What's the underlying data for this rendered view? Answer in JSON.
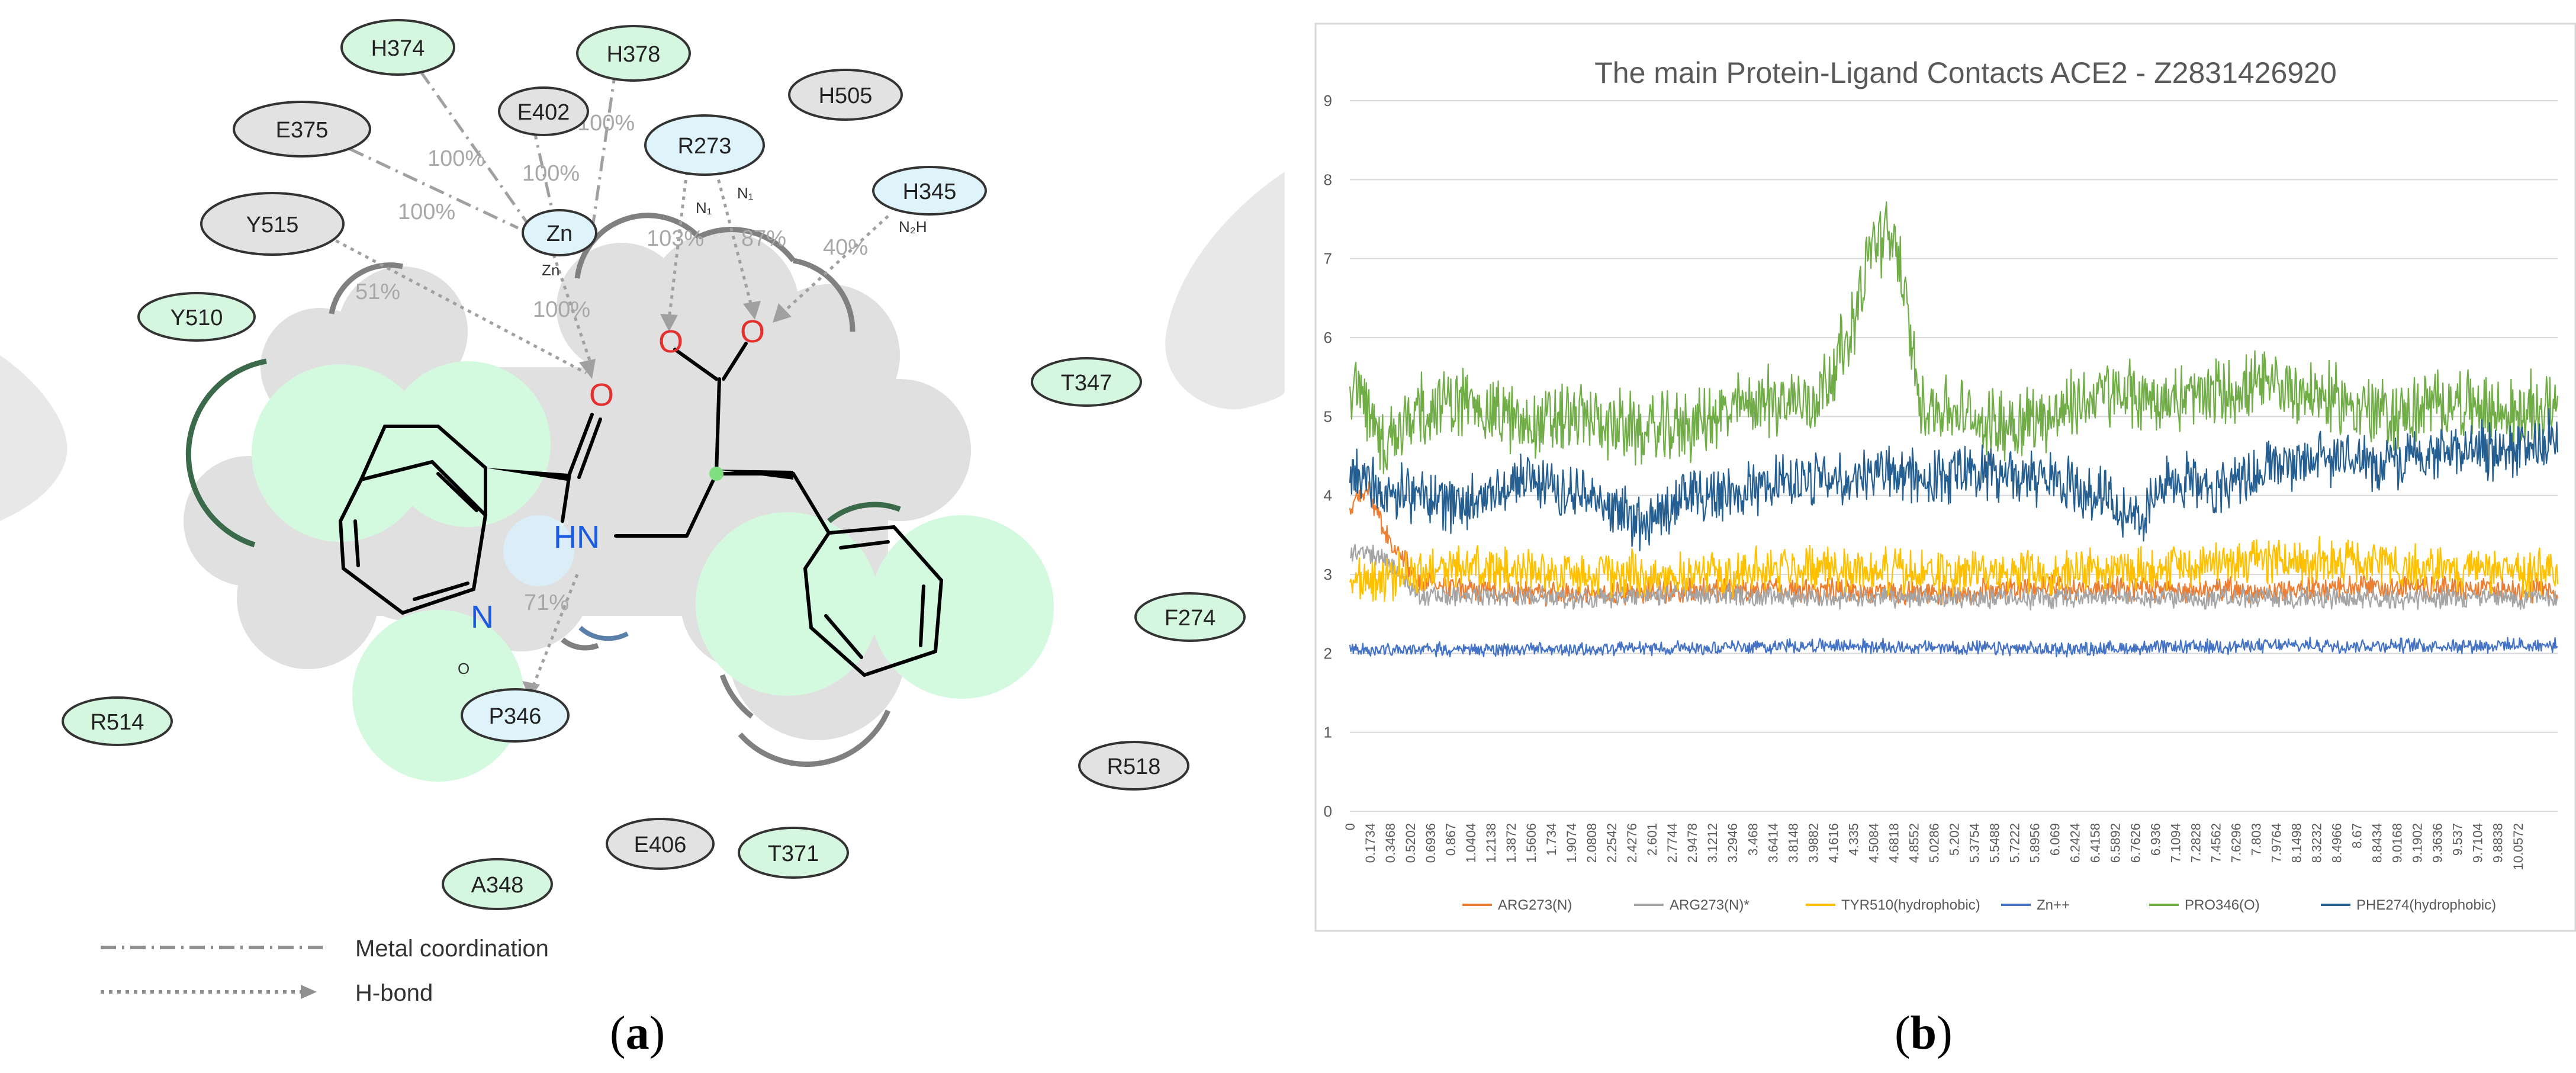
{
  "panel_labels": {
    "a": "a",
    "b": "b"
  },
  "interaction_diagram": {
    "residues": [
      {
        "name": "H374",
        "color": "#d5f7e0"
      },
      {
        "name": "H378",
        "color": "#d5f7e0"
      },
      {
        "name": "E402",
        "color": "#e2e2e2"
      },
      {
        "name": "E375",
        "color": "#e2e2e2"
      },
      {
        "name": "H505",
        "color": "#e2e2e2"
      },
      {
        "name": "R273",
        "color": "#dff3fb"
      },
      {
        "name": "H345",
        "color": "#dff3fb"
      },
      {
        "name": "Y515",
        "color": "#e2e2e2"
      },
      {
        "name": "Zn",
        "color": "#dff3fb"
      },
      {
        "name": "Y510",
        "color": "#d5f7e0"
      },
      {
        "name": "T347",
        "color": "#d5f7e0"
      },
      {
        "name": "F274",
        "color": "#d5f7e0"
      },
      {
        "name": "R514",
        "color": "#d5f7e0"
      },
      {
        "name": "P346",
        "color": "#dff3fb"
      },
      {
        "name": "R518",
        "color": "#e2e2e2"
      },
      {
        "name": "E406",
        "color": "#e2e2e2"
      },
      {
        "name": "T371",
        "color": "#d5f7e0"
      },
      {
        "name": "A348",
        "color": "#d5f7e0"
      }
    ],
    "percent_labels": [
      "100%",
      "100%",
      "100%",
      "100%",
      "100%",
      "51%",
      "103%",
      "87%",
      "40%",
      "71%"
    ],
    "atom_labels": {
      "o1": "O",
      "o2": "O",
      "o3": "O",
      "hn": "HN",
      "n": "N",
      "zn_small": "Zn",
      "n1": "N₁",
      "n2": "N₁",
      "nh": "N₂H",
      "p_o": "O"
    },
    "legend": [
      {
        "label": "Metal coordination",
        "style": "dash-dot"
      },
      {
        "label": "H-bond",
        "style": "dotted-arrow"
      }
    ]
  },
  "chart_data": {
    "type": "line",
    "title": "The main Protein-Ligand Contacts ACE2 - Z2831426920",
    "xlabel": "",
    "ylabel": "",
    "ylim": [
      0,
      9
    ],
    "xlim": [
      0,
      10.4
    ],
    "grid": "horizontal",
    "legend_position": "bottom",
    "y_ticks": [
      "0",
      "1",
      "2",
      "3",
      "4",
      "5",
      "6",
      "7",
      "8",
      "9"
    ],
    "x_tick_labels": [
      "0",
      "0.1734",
      "0.3468",
      "0.5202",
      "0.6936",
      "0.867",
      "1.0404",
      "1.2138",
      "1.3872",
      "1.5606",
      "1.734",
      "1.9074",
      "2.0808",
      "2.2542",
      "2.4276",
      "2.601",
      "2.7744",
      "2.9478",
      "3.1212",
      "3.2946",
      "3.468",
      "3.6414",
      "3.8148",
      "3.9882",
      "4.1616",
      "4.335",
      "4.5084",
      "4.6818",
      "4.8552",
      "5.0286",
      "5.202",
      "5.3754",
      "5.5488",
      "5.7222",
      "5.8956",
      "6.069",
      "6.2424",
      "6.4158",
      "6.5892",
      "6.7626",
      "6.936",
      "7.1094",
      "7.2828",
      "7.4562",
      "7.6296",
      "7.803",
      "7.9764",
      "8.1498",
      "8.3232",
      "8.4966",
      "8.67",
      "8.8434",
      "9.0168",
      "9.1902",
      "9.3636",
      "9.537",
      "9.7104",
      "9.8838",
      "10.0572"
    ],
    "series": [
      {
        "name": "ARG273(N)",
        "color": "#ed7d31",
        "key_points": [
          [
            0,
            3.8
          ],
          [
            0.15,
            4.1
          ],
          [
            0.3,
            3.5
          ],
          [
            0.6,
            2.9
          ],
          [
            1.0,
            2.8
          ],
          [
            2.0,
            2.75
          ],
          [
            3.0,
            2.8
          ],
          [
            4.0,
            2.8
          ],
          [
            5.0,
            2.75
          ],
          [
            6.0,
            2.85
          ],
          [
            7.0,
            2.8
          ],
          [
            8.0,
            2.8
          ],
          [
            9.0,
            2.85
          ],
          [
            10.4,
            2.8
          ]
        ],
        "noise": 0.12
      },
      {
        "name": "ARG273(N)*",
        "color": "#a5a5a5",
        "key_points": [
          [
            0,
            3.3
          ],
          [
            0.3,
            3.2
          ],
          [
            0.6,
            2.75
          ],
          [
            2.0,
            2.7
          ],
          [
            3.0,
            2.75
          ],
          [
            4.0,
            2.7
          ],
          [
            5.0,
            2.7
          ],
          [
            6.0,
            2.7
          ],
          [
            7.0,
            2.7
          ],
          [
            8.0,
            2.7
          ],
          [
            9.0,
            2.7
          ],
          [
            10.4,
            2.7
          ]
        ],
        "noise": 0.1
      },
      {
        "name": "TYR510(hydrophobic)",
        "color": "#ffc000",
        "key_points": [
          [
            0,
            2.9
          ],
          [
            1.0,
            3.1
          ],
          [
            2.0,
            3.0
          ],
          [
            3.0,
            3.0
          ],
          [
            4.0,
            3.1
          ],
          [
            5.0,
            3.0
          ],
          [
            6.0,
            3.05
          ],
          [
            7.0,
            3.1
          ],
          [
            8.0,
            3.2
          ],
          [
            9.0,
            3.1
          ],
          [
            10.4,
            3.0
          ]
        ],
        "noise": 0.22
      },
      {
        "name": "Zn++",
        "color": "#4472c4",
        "key_points": [
          [
            0,
            2.05
          ],
          [
            2.0,
            2.05
          ],
          [
            4.0,
            2.1
          ],
          [
            6.0,
            2.05
          ],
          [
            8.0,
            2.1
          ],
          [
            10.4,
            2.1
          ]
        ],
        "noise": 0.07
      },
      {
        "name": "PRO346(O)",
        "color": "#70ad47",
        "key_points": [
          [
            0,
            5.5
          ],
          [
            0.3,
            4.6
          ],
          [
            0.6,
            5.1
          ],
          [
            1.0,
            5.2
          ],
          [
            1.5,
            4.9
          ],
          [
            2.0,
            5.0
          ],
          [
            2.5,
            4.8
          ],
          [
            3.0,
            4.9
          ],
          [
            3.5,
            5.2
          ],
          [
            4.0,
            5.2
          ],
          [
            4.3,
            6.0
          ],
          [
            4.5,
            7.2
          ],
          [
            4.7,
            7.3
          ],
          [
            4.9,
            5.2
          ],
          [
            5.5,
            4.9
          ],
          [
            6.0,
            5.0
          ],
          [
            6.5,
            5.3
          ],
          [
            7.0,
            5.2
          ],
          [
            7.5,
            5.3
          ],
          [
            8.0,
            5.4
          ],
          [
            8.5,
            5.2
          ],
          [
            9.0,
            5.0
          ],
          [
            9.5,
            5.2
          ],
          [
            10.0,
            5.0
          ],
          [
            10.4,
            5.2
          ]
        ],
        "noise": 0.35
      },
      {
        "name": "PHE274(hydrophobic)",
        "color": "#255e91",
        "key_points": [
          [
            0,
            4.3
          ],
          [
            0.5,
            4.0
          ],
          [
            1.0,
            3.9
          ],
          [
            1.5,
            4.2
          ],
          [
            2.0,
            4.0
          ],
          [
            2.5,
            3.7
          ],
          [
            3.0,
            4.0
          ],
          [
            3.5,
            4.1
          ],
          [
            4.0,
            4.2
          ],
          [
            4.5,
            4.3
          ],
          [
            5.0,
            4.2
          ],
          [
            5.5,
            4.3
          ],
          [
            6.0,
            4.2
          ],
          [
            6.5,
            4.0
          ],
          [
            6.8,
            3.7
          ],
          [
            7.0,
            4.2
          ],
          [
            7.5,
            4.1
          ],
          [
            8.0,
            4.4
          ],
          [
            8.5,
            4.5
          ],
          [
            9.0,
            4.4
          ],
          [
            9.5,
            4.6
          ],
          [
            10.0,
            4.5
          ],
          [
            10.4,
            4.8
          ]
        ],
        "noise": 0.28
      }
    ]
  }
}
